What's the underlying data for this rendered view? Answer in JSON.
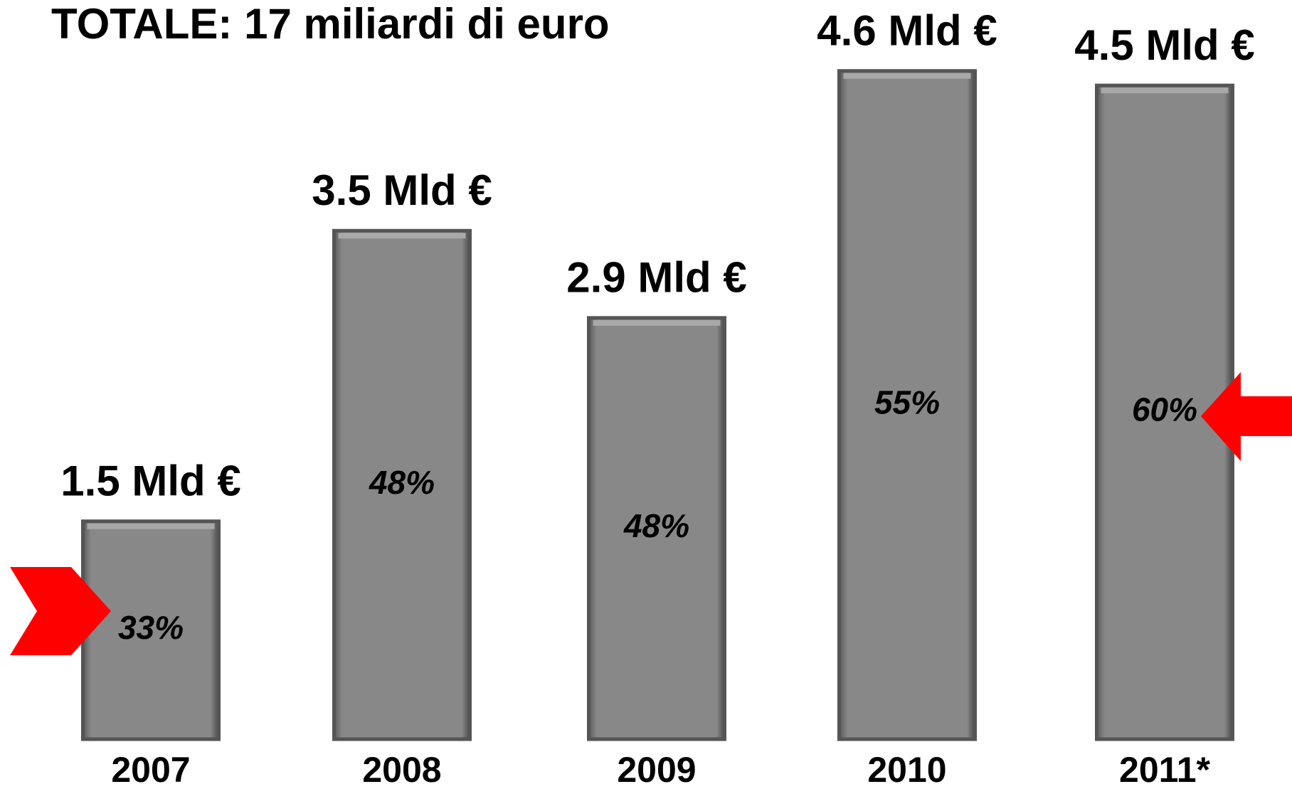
{
  "chart_data": {
    "type": "bar",
    "title": "TOTALE: 17 miliardi di euro",
    "categories": [
      "2007",
      "2008",
      "2009",
      "2010",
      "2011*"
    ],
    "values": [
      1.5,
      3.5,
      2.9,
      4.6,
      4.5
    ],
    "value_labels": [
      "1.5 Mld €",
      "3.5 Mld €",
      "2.9 Mld €",
      "4.6 Mld €",
      "4.5 Mld €"
    ],
    "share_values": [
      33,
      48,
      48,
      55,
      60
    ],
    "share_labels": [
      "33%",
      "48%",
      "48%",
      "55%",
      "60%"
    ],
    "color": "#888888",
    "ylim": [
      0,
      5
    ]
  }
}
